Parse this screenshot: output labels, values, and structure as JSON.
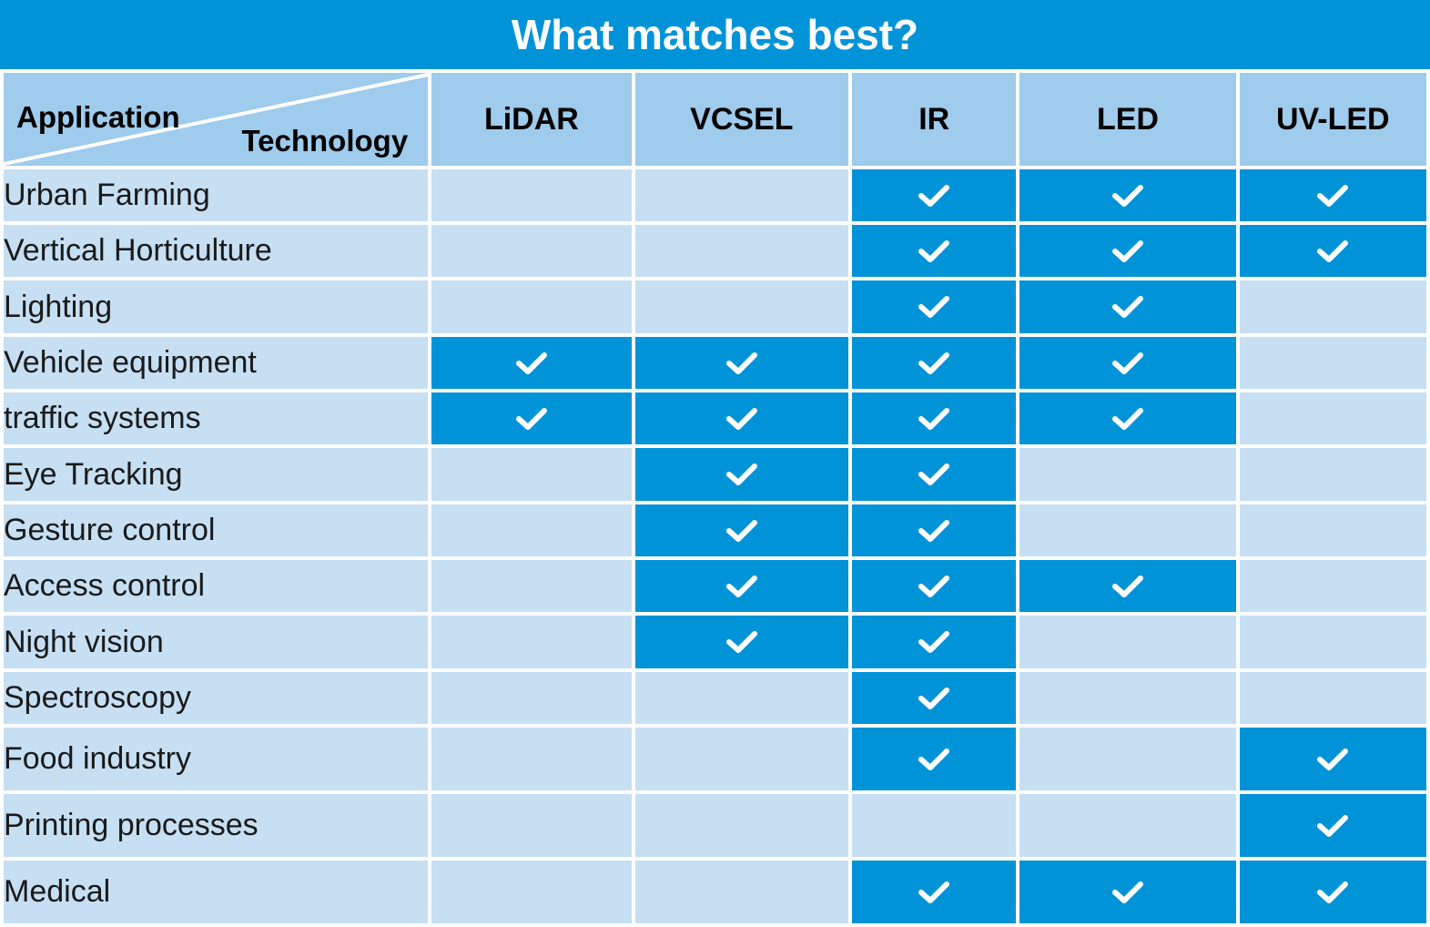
{
  "title": "What matches best?",
  "corner": {
    "row_label": "Application",
    "column_label": "Technology"
  },
  "technologies": [
    "LiDAR",
    "VCSEL",
    "IR",
    "LED",
    "UV-LED"
  ],
  "applications": [
    {
      "name": "Urban Farming",
      "matches": [
        false,
        false,
        true,
        true,
        true
      ]
    },
    {
      "name": "Vertical Horticulture",
      "matches": [
        false,
        false,
        true,
        true,
        true
      ]
    },
    {
      "name": "Lighting",
      "matches": [
        false,
        false,
        true,
        true,
        false
      ]
    },
    {
      "name": "Vehicle equipment",
      "matches": [
        true,
        true,
        true,
        true,
        false
      ]
    },
    {
      "name": "traffic systems",
      "matches": [
        true,
        true,
        true,
        true,
        false
      ]
    },
    {
      "name": "Eye Tracking",
      "matches": [
        false,
        true,
        true,
        false,
        false
      ]
    },
    {
      "name": "Gesture control",
      "matches": [
        false,
        true,
        true,
        false,
        false
      ]
    },
    {
      "name": "Access control",
      "matches": [
        false,
        true,
        true,
        true,
        false
      ]
    },
    {
      "name": "Night vision",
      "matches": [
        false,
        true,
        true,
        false,
        false
      ]
    },
    {
      "name": "Spectroscopy",
      "matches": [
        false,
        false,
        true,
        false,
        false
      ]
    },
    {
      "name": "Food industry",
      "matches": [
        false,
        false,
        true,
        false,
        true
      ]
    },
    {
      "name": "Printing processes",
      "matches": [
        false,
        false,
        false,
        false,
        true
      ]
    },
    {
      "name": "Medical",
      "matches": [
        false,
        false,
        true,
        true,
        true
      ]
    }
  ],
  "icons": {
    "match": "checkmark-icon"
  },
  "colors": {
    "accent": "#0093d8",
    "header_light": "#9fcbec",
    "cell_light": "#c6dff3",
    "check": "#ffffff"
  }
}
